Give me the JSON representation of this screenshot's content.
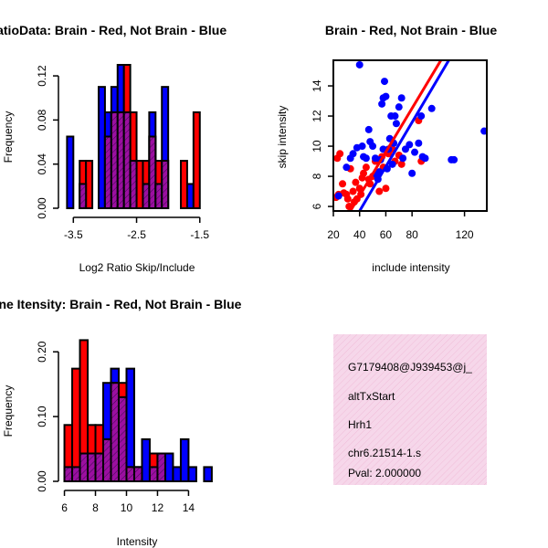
{
  "chart_data": [
    {
      "type": "histogram",
      "title": "RatioData: Brain - Red, Not Brain - Blue",
      "xlabel": "Log2 Ratio Skip/Include",
      "ylabel": "Frequency",
      "xlim": [
        -3.62,
        -1.28
      ],
      "ylim": [
        0,
        0.13
      ],
      "x_ticks": [
        -3.5,
        -2.5,
        -1.5
      ],
      "x_tick_labels": [
        "-3.5",
        "-2.5",
        "-1.5"
      ],
      "y_ticks": [
        0,
        0.04,
        0.08,
        0.12
      ],
      "y_tick_labels": [
        "0.00",
        "0.04",
        "0.08",
        "0.12"
      ],
      "bin_width": 0.1,
      "series": [
        {
          "name": "Not Brain",
          "color": "#0000ff",
          "bins": [
            [
              -3.6,
              -3.5,
              0.065
            ],
            [
              -3.4,
              -3.3,
              0.022
            ],
            [
              -3.1,
              -3.0,
              0.11
            ],
            [
              -3.0,
              -2.9,
              0.087
            ],
            [
              -2.9,
              -2.8,
              0.11
            ],
            [
              -2.8,
              -2.7,
              0.13
            ],
            [
              -2.7,
              -2.6,
              0.087
            ],
            [
              -2.6,
              -2.5,
              0.043
            ],
            [
              -2.4,
              -2.3,
              0.022
            ],
            [
              -2.3,
              -2.2,
              0.087
            ],
            [
              -2.2,
              -2.1,
              0.022
            ],
            [
              -2.1,
              -2.0,
              0.11
            ],
            [
              -1.7,
              -1.6,
              0.022
            ]
          ]
        },
        {
          "name": "Brain",
          "color": "#ff0000",
          "bins": [
            [
              -3.4,
              -3.3,
              0.043
            ],
            [
              -3.3,
              -3.2,
              0.043
            ],
            [
              -3.0,
              -2.9,
              0.065
            ],
            [
              -2.9,
              -2.8,
              0.087
            ],
            [
              -2.8,
              -2.7,
              0.087
            ],
            [
              -2.7,
              -2.6,
              0.13
            ],
            [
              -2.6,
              -2.5,
              0.087
            ],
            [
              -2.5,
              -2.4,
              0.043
            ],
            [
              -2.4,
              -2.3,
              0.043
            ],
            [
              -2.3,
              -2.2,
              0.065
            ],
            [
              -2.2,
              -2.1,
              0.043
            ],
            [
              -2.1,
              -2.0,
              0.043
            ],
            [
              -1.8,
              -1.7,
              0.043
            ],
            [
              -1.6,
              -1.5,
              0.087
            ]
          ]
        }
      ]
    },
    {
      "type": "scatter",
      "title": "Brain - Red, Not Brain - Blue",
      "xlabel": "include intensity",
      "ylabel": "skip intensity",
      "xlim": [
        20,
        137
      ],
      "ylim": [
        5.7,
        15.7
      ],
      "x_ticks": [
        20,
        40,
        60,
        80,
        120
      ],
      "y_ticks": [
        6,
        8,
        10,
        12,
        14
      ],
      "series": [
        {
          "name": "Brain",
          "color": "#ff0000",
          "points": [
            [
              22,
              6.6
            ],
            [
              23,
              9.2
            ],
            [
              24,
              6.8
            ],
            [
              25,
              9.5
            ],
            [
              27,
              7.5
            ],
            [
              28,
              6.9
            ],
            [
              30,
              6.8
            ],
            [
              31,
              6.5
            ],
            [
              32,
              6.0
            ],
            [
              33,
              8.5
            ],
            [
              35,
              7.0
            ],
            [
              36,
              6.3
            ],
            [
              37,
              7.6
            ],
            [
              38,
              6.5
            ],
            [
              40,
              7.2
            ],
            [
              41,
              6.8
            ],
            [
              42,
              7.9
            ],
            [
              43,
              8.2
            ],
            [
              45,
              8.6
            ],
            [
              47,
              7.8
            ],
            [
              48,
              7.5
            ],
            [
              50,
              8.0
            ],
            [
              52,
              9.0
            ],
            [
              55,
              7.0
            ],
            [
              57,
              9.3
            ],
            [
              58,
              8.6
            ],
            [
              60,
              7.2
            ],
            [
              62,
              9.5
            ],
            [
              65,
              9.8
            ],
            [
              67,
              9.0
            ],
            [
              70,
              9.4
            ],
            [
              72,
              8.8
            ],
            [
              85,
              11.7
            ],
            [
              87,
              9.0
            ]
          ]
        },
        {
          "name": "Not Brain",
          "color": "#0000ff",
          "points": [
            [
              24,
              6.7
            ],
            [
              30,
              8.6
            ],
            [
              33,
              9.2
            ],
            [
              35,
              9.5
            ],
            [
              38,
              9.9
            ],
            [
              40,
              15.4
            ],
            [
              42,
              10.0
            ],
            [
              43,
              9.3
            ],
            [
              45,
              9.2
            ],
            [
              47,
              11.1
            ],
            [
              48,
              10.3
            ],
            [
              50,
              10.0
            ],
            [
              52,
              9.2
            ],
            [
              53,
              8.1
            ],
            [
              54,
              7.8
            ],
            [
              55,
              8.3
            ],
            [
              56,
              9.1
            ],
            [
              57,
              12.8
            ],
            [
              58,
              13.2
            ],
            [
              58,
              9.8
            ],
            [
              59,
              14.3
            ],
            [
              60,
              13.3
            ],
            [
              61,
              8.5
            ],
            [
              62,
              9.8
            ],
            [
              63,
              10.5
            ],
            [
              64,
              12.0
            ],
            [
              65,
              8.8
            ],
            [
              66,
              10.2
            ],
            [
              67,
              12.0
            ],
            [
              68,
              11.5
            ],
            [
              70,
              12.6
            ],
            [
              72,
              13.2
            ],
            [
              73,
              9.2
            ],
            [
              75,
              9.8
            ],
            [
              78,
              10.1
            ],
            [
              80,
              8.2
            ],
            [
              82,
              9.6
            ],
            [
              85,
              10.2
            ],
            [
              87,
              12.0
            ],
            [
              88,
              9.3
            ],
            [
              90,
              9.2
            ],
            [
              95,
              12.5
            ],
            [
              110,
              9.1
            ],
            [
              112,
              9.1
            ],
            [
              135,
              11.0
            ]
          ]
        }
      ],
      "fit_lines": [
        {
          "name": "Brain",
          "color": "#ff0000",
          "from": [
            33,
            5.7
          ],
          "to": [
            102,
            15.7
          ]
        },
        {
          "name": "Not Brain",
          "color": "#0000ff",
          "from": [
            40,
            5.7
          ],
          "to": [
            108,
            15.7
          ]
        }
      ]
    },
    {
      "type": "histogram",
      "title": "Line Itensity: Brain - Red, Not Brain - Blue",
      "xlabel": "Intensity",
      "ylabel": "Frequency",
      "xlim": [
        5.85,
        15.8
      ],
      "ylim": [
        0,
        0.22
      ],
      "x_ticks": [
        6,
        8,
        10,
        12,
        14
      ],
      "y_ticks": [
        0,
        0.1,
        0.2
      ],
      "y_tick_labels": [
        "0.00",
        "0.10",
        "0.20"
      ],
      "bin_width": 0.5,
      "series": [
        {
          "name": "Not Brain",
          "color": "#0000ff",
          "bins": [
            [
              6.0,
              6.5,
              0.022
            ],
            [
              6.5,
              7.0,
              0.022
            ],
            [
              7.0,
              7.5,
              0.043
            ],
            [
              7.5,
              8.0,
              0.043
            ],
            [
              8.0,
              8.5,
              0.043
            ],
            [
              8.5,
              9.0,
              0.152
            ],
            [
              9.0,
              9.5,
              0.174
            ],
            [
              9.5,
              10.0,
              0.13
            ],
            [
              10.0,
              10.5,
              0.174
            ],
            [
              10.5,
              11.0,
              0.022
            ],
            [
              11.0,
              11.5,
              0.065
            ],
            [
              11.5,
              12.0,
              0.022
            ],
            [
              12.0,
              12.5,
              0.043
            ],
            [
              12.5,
              13.0,
              0.043
            ],
            [
              13.0,
              13.5,
              0.022
            ],
            [
              13.5,
              14.0,
              0.065
            ],
            [
              14.0,
              14.5,
              0.022
            ],
            [
              15.0,
              15.5,
              0.022
            ]
          ]
        },
        {
          "name": "Brain",
          "color": "#ff0000",
          "bins": [
            [
              6.0,
              6.5,
              0.087
            ],
            [
              6.5,
              7.0,
              0.174
            ],
            [
              7.0,
              7.5,
              0.218
            ],
            [
              7.5,
              8.0,
              0.087
            ],
            [
              8.0,
              8.5,
              0.087
            ],
            [
              8.5,
              9.0,
              0.065
            ],
            [
              9.0,
              9.5,
              0.152
            ],
            [
              9.5,
              10.0,
              0.152
            ],
            [
              10.0,
              10.5,
              0.022
            ],
            [
              10.5,
              11.0,
              0.022
            ],
            [
              11.5,
              12.0,
              0.043
            ],
            [
              12.0,
              12.5,
              0.043
            ]
          ]
        }
      ]
    }
  ],
  "info_panel": {
    "lines": [
      "G7179408@J939453@j_",
      "altTxStart",
      "Hrh1",
      "chr6.21514-1.s"
    ],
    "pval": "Pval: 2.000000",
    "pval_color": "#a00000",
    "fill_color": "#f6d7ea",
    "hatch_color": "#f0bcd8"
  },
  "colors": {
    "brain": "#ff0000",
    "not_brain": "#0000ff",
    "overlap": "#9b0fa0",
    "overlap_hatch": "#3c0a50"
  }
}
